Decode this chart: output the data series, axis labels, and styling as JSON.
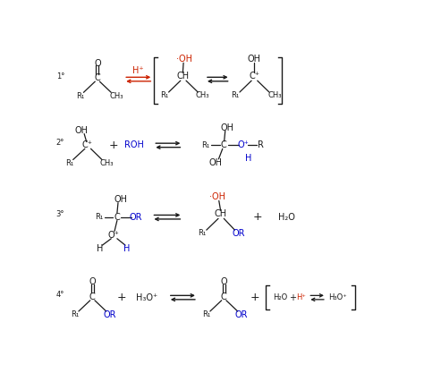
{
  "bg_color": "#ffffff",
  "black": "#1a1a1a",
  "red": "#cc2200",
  "blue": "#0000cc",
  "figsize": [
    4.74,
    4.17
  ],
  "dpi": 100,
  "rows": [
    0.88,
    0.65,
    0.4,
    0.12
  ],
  "fs": 7.0,
  "fsm": 6.0
}
